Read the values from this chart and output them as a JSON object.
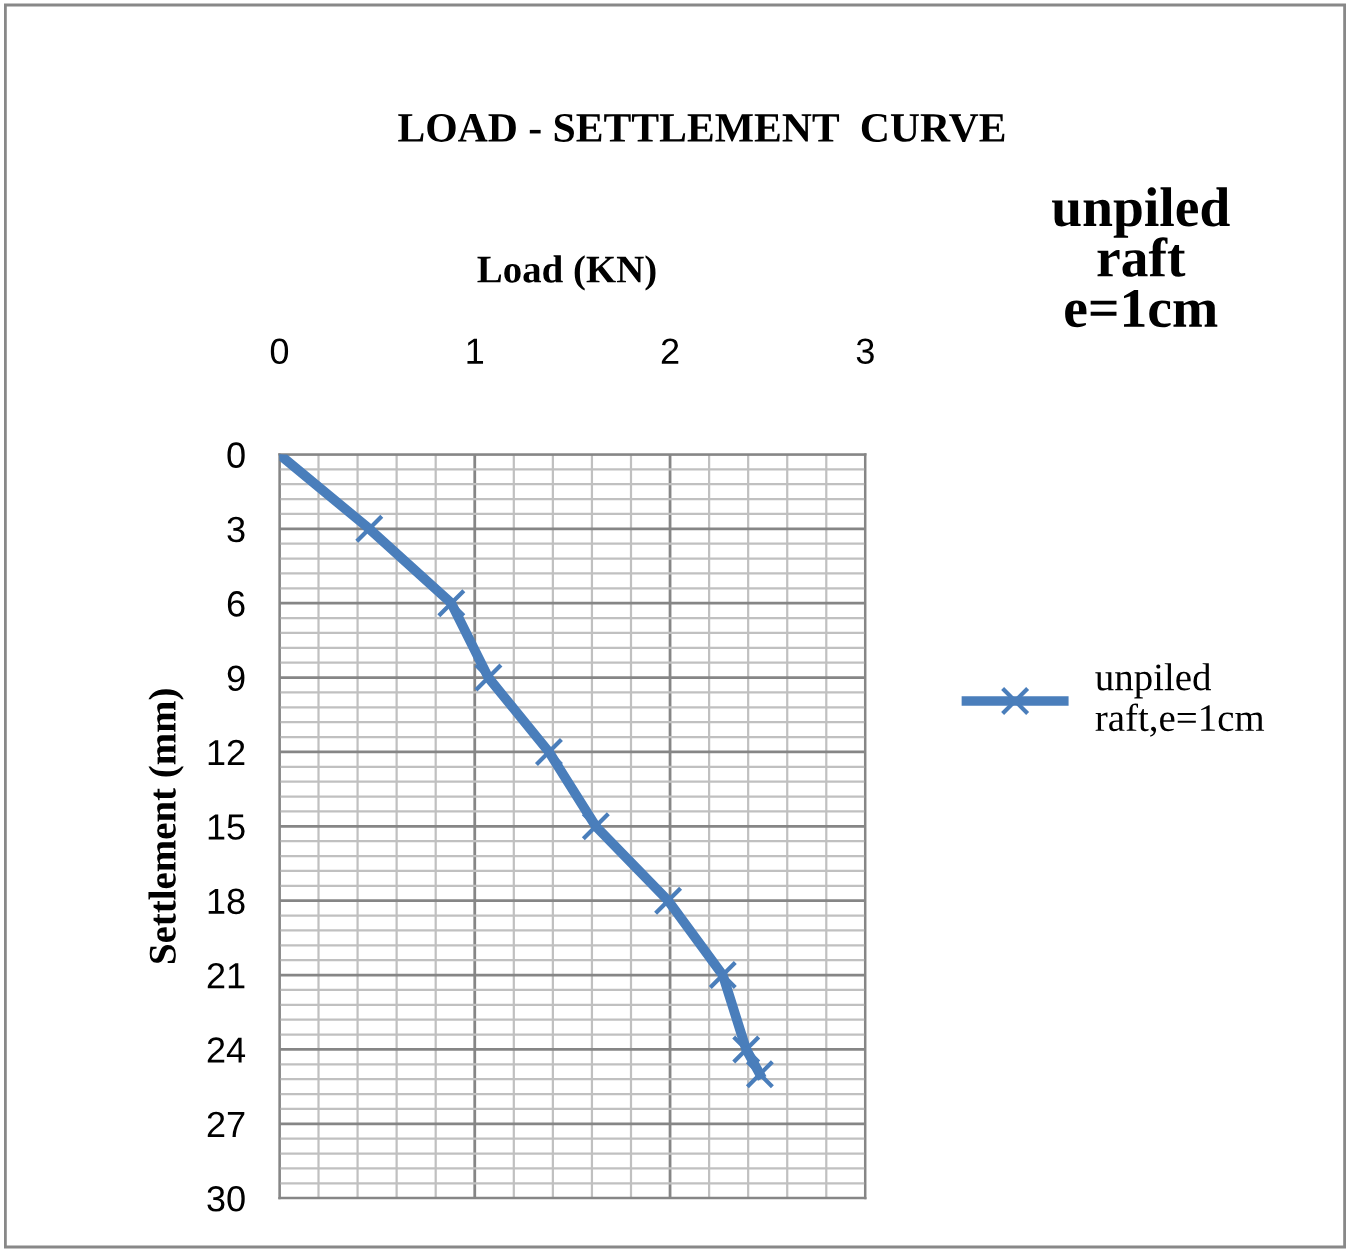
{
  "chart_data": {
    "type": "line",
    "title": "LOAD - SETTLEMENT  CURVE",
    "xlabel": "Load (KN)",
    "ylabel": "Settlement (mm)",
    "annotations": [
      "unpiled\nraft\ne=1cm"
    ],
    "series": [
      {
        "name": "unpiled\nraft,e=1cm",
        "color": "#4a7ebb",
        "x": [
          0,
          0.46,
          0.88,
          1.07,
          1.38,
          1.62,
          1.99,
          2.27,
          2.39,
          2.46
        ],
        "values": [
          0,
          3,
          6,
          9,
          12,
          15,
          18,
          21,
          24,
          25
        ]
      }
    ],
    "xlim": [
      0,
      3
    ],
    "xticks": [
      0,
      1,
      2,
      3
    ],
    "ylim": [
      30,
      0
    ],
    "yticks": [
      0,
      3,
      6,
      9,
      12,
      15,
      18,
      21,
      24,
      27,
      30
    ],
    "grid": true,
    "legend": "right",
    "marker": "cross",
    "line_style": "solid"
  }
}
